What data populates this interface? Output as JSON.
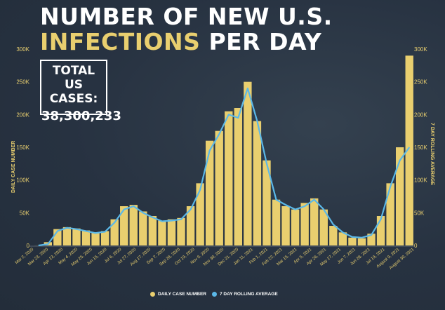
{
  "title": {
    "line1": "NUMBER OF NEW U.S.",
    "line2_highlight": "INFECTIONS",
    "line2_rest": "PER DAY"
  },
  "total_box": {
    "line1": "TOTAL",
    "line2": "US CASES:",
    "value": "38,300,233"
  },
  "colors": {
    "bars": "#e9cf6f",
    "line": "#5bb8e8",
    "background": "#273241",
    "title_highlight": "#e9cf6f"
  },
  "chart_data": {
    "type": "bar",
    "title": "NUMBER OF NEW U.S. INFECTIONS PER DAY",
    "ylabel": "DAILY CASE NUMBER",
    "y2label": "7 DAY ROLLING AVERAGE",
    "ylim": [
      0,
      300000
    ],
    "yticks": [
      0,
      50000,
      100000,
      150000,
      200000,
      250000,
      300000
    ],
    "ytick_labels": [
      "0",
      "50K",
      "100K",
      "150K",
      "200K",
      "250K",
      "300K"
    ],
    "grid": false,
    "legend_position": "bottom",
    "x_tick_labels": [
      "Mar 2, 2020",
      "Mar 23, 2020",
      "Apr 13, 2020",
      "May 4, 2020",
      "May 25, 2020",
      "Jun 15, 2020",
      "Jul 6, 2020",
      "Jul 27, 2020",
      "Aug 17, 2020",
      "Sep 7, 2020",
      "Sep 28, 2020",
      "Oct 19, 2020",
      "Nov 9, 2020",
      "Nov 30, 2020",
      "Dec 21, 2020",
      "Jan 11, 2021",
      "Feb 1, 2021",
      "Feb 22, 2021",
      "Mar 15, 2021",
      "Apr 5, 2021",
      "Apr 26, 2021",
      "May 17, 2021",
      "Jun 7, 2021",
      "Jun 28, 2021",
      "Jul 19, 2021",
      "August 9, 2021",
      "August 30, 2021"
    ],
    "series": [
      {
        "name": "DAILY CASE NUMBER",
        "kind": "bar",
        "x": [
          "Mar 2, 2020",
          "Mar 16, 2020",
          "Mar 30, 2020",
          "Apr 13, 2020",
          "Apr 27, 2020",
          "May 11, 2020",
          "May 25, 2020",
          "Jun 8, 2020",
          "Jun 22, 2020",
          "Jul 6, 2020",
          "Jul 20, 2020",
          "Aug 3, 2020",
          "Aug 17, 2020",
          "Aug 31, 2020",
          "Sep 14, 2020",
          "Sep 28, 2020",
          "Oct 12, 2020",
          "Oct 26, 2020",
          "Nov 9, 2020",
          "Nov 23, 2020",
          "Dec 7, 2020",
          "Dec 21, 2020",
          "Jan 4, 2021",
          "Jan 18, 2021",
          "Feb 1, 2021",
          "Feb 15, 2021",
          "Mar 1, 2021",
          "Mar 15, 2021",
          "Mar 29, 2021",
          "Apr 12, 2021",
          "Apr 26, 2021",
          "May 10, 2021",
          "May 24, 2021",
          "Jun 7, 2021",
          "Jun 21, 2021",
          "Jul 5, 2021",
          "Jul 19, 2021",
          "Aug 2, 2021",
          "Aug 16, 2021",
          "Aug 30, 2021"
        ],
        "values": [
          100,
          5000,
          25000,
          28000,
          26000,
          23000,
          20000,
          22000,
          40000,
          60000,
          62000,
          52000,
          45000,
          38000,
          40000,
          42000,
          60000,
          95000,
          160000,
          175000,
          205000,
          210000,
          250000,
          190000,
          130000,
          70000,
          60000,
          55000,
          65000,
          72000,
          55000,
          30000,
          20000,
          12000,
          11000,
          18000,
          45000,
          95000,
          150000,
          290000
        ]
      },
      {
        "name": "7 DAY ROLLING AVERAGE",
        "kind": "line",
        "x": [
          "Mar 2, 2020",
          "Mar 16, 2020",
          "Mar 30, 2020",
          "Apr 13, 2020",
          "Apr 27, 2020",
          "May 11, 2020",
          "May 25, 2020",
          "Jun 8, 2020",
          "Jun 22, 2020",
          "Jul 6, 2020",
          "Jul 20, 2020",
          "Aug 3, 2020",
          "Aug 17, 2020",
          "Aug 31, 2020",
          "Sep 14, 2020",
          "Sep 28, 2020",
          "Oct 12, 2020",
          "Oct 26, 2020",
          "Nov 9, 2020",
          "Nov 23, 2020",
          "Dec 7, 2020",
          "Dec 21, 2020",
          "Jan 4, 2021",
          "Jan 18, 2021",
          "Feb 1, 2021",
          "Feb 15, 2021",
          "Mar 1, 2021",
          "Mar 15, 2021",
          "Mar 29, 2021",
          "Apr 12, 2021",
          "Apr 26, 2021",
          "May 10, 2021",
          "May 24, 2021",
          "Jun 7, 2021",
          "Jun 21, 2021",
          "Jul 5, 2021",
          "Jul 19, 2021",
          "Aug 2, 2021",
          "Aug 16, 2021",
          "Aug 30, 2021"
        ],
        "values": [
          0,
          2000,
          22000,
          27000,
          25000,
          22000,
          19000,
          21000,
          35000,
          55000,
          60000,
          50000,
          43000,
          37000,
          38000,
          40000,
          55000,
          85000,
          145000,
          170000,
          200000,
          195000,
          240000,
          190000,
          125000,
          70000,
          62000,
          55000,
          60000,
          70000,
          55000,
          32000,
          20000,
          13000,
          12000,
          16000,
          40000,
          90000,
          130000,
          150000
        ]
      }
    ]
  }
}
